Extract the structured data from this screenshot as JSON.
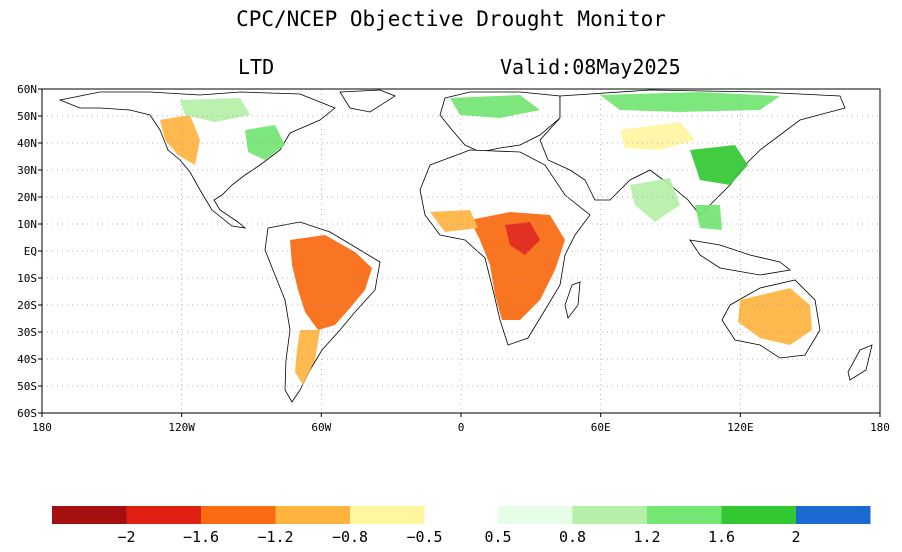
{
  "title": "CPC/NCEP Objective Drought Monitor",
  "left_label": "LTD",
  "valid_label": "Valid:08May2025",
  "map": {
    "lat_ticks": [
      "60N",
      "50N",
      "40N",
      "30N",
      "20N",
      "10N",
      "EQ",
      "10S",
      "20S",
      "30S",
      "40S",
      "50S",
      "60S"
    ],
    "lon_ticks": [
      "180",
      "120W",
      "60W",
      "0",
      "60E",
      "120E",
      "180"
    ]
  },
  "colorbar": {
    "dry": {
      "colors": [
        "#a50f0f",
        "#e02010",
        "#fa6a10",
        "#ffb440",
        "#fff7a0"
      ],
      "labels": [
        "−2",
        "−1.6",
        "−1.2",
        "−0.8",
        "−0.5"
      ]
    },
    "wet": {
      "colors": [
        "#e6fde6",
        "#b5f0a8",
        "#73e673",
        "#32c832",
        "#1a6ad2"
      ],
      "labels": [
        "0.5",
        "0.8",
        "1.2",
        "1.6",
        "2"
      ]
    }
  }
}
